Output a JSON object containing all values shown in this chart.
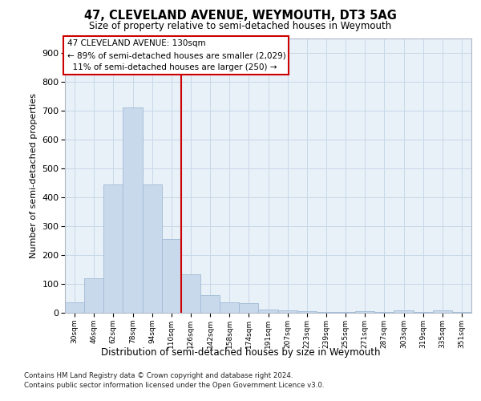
{
  "title": "47, CLEVELAND AVENUE, WEYMOUTH, DT3 5AG",
  "subtitle": "Size of property relative to semi-detached houses in Weymouth",
  "xlabel": "Distribution of semi-detached houses by size in Weymouth",
  "ylabel": "Number of semi-detached properties",
  "bins": [
    "30sqm",
    "46sqm",
    "62sqm",
    "78sqm",
    "94sqm",
    "110sqm",
    "126sqm",
    "142sqm",
    "158sqm",
    "174sqm",
    "191sqm",
    "207sqm",
    "223sqm",
    "239sqm",
    "255sqm",
    "271sqm",
    "287sqm",
    "303sqm",
    "319sqm",
    "335sqm",
    "351sqm"
  ],
  "values": [
    35,
    118,
    445,
    710,
    445,
    255,
    133,
    60,
    37,
    32,
    12,
    8,
    6,
    3,
    3,
    6,
    4,
    8,
    4,
    7,
    3
  ],
  "bar_color": "#c9d9ec",
  "bar_edge_color": "#a0bad4",
  "grid_color": "#c8d8e8",
  "background_color": "#e8f0f8",
  "vline_x_index": 6,
  "property_size": "130sqm",
  "pct_smaller": 89,
  "count_smaller": "2,029",
  "pct_larger": 11,
  "count_larger": "250",
  "annotation_box_color": "#cc0000",
  "ylim": [
    0,
    950
  ],
  "yticks": [
    0,
    100,
    200,
    300,
    400,
    500,
    600,
    700,
    800,
    900
  ],
  "footer_line1": "Contains HM Land Registry data © Crown copyright and database right 2024.",
  "footer_line2": "Contains public sector information licensed under the Open Government Licence v3.0."
}
